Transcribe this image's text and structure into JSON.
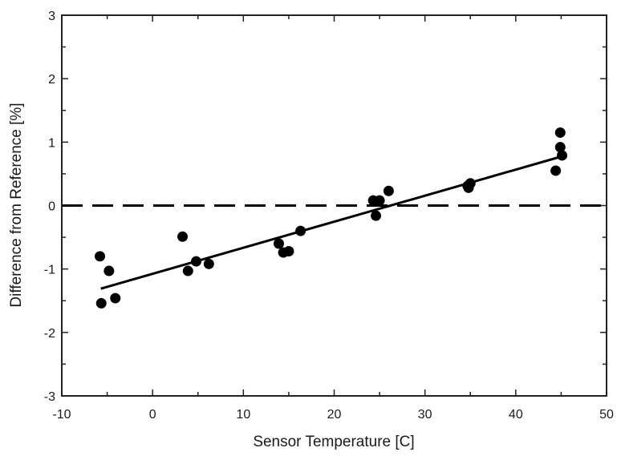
{
  "chart_data": {
    "type": "scatter",
    "title": "",
    "xlabel": "Sensor Temperature [C]",
    "ylabel": "Difference from Reference [%]",
    "xlim": [
      -10,
      50
    ],
    "ylim": [
      -3,
      3
    ],
    "xticks": [
      "-10",
      "0",
      "10",
      "20",
      "30",
      "40",
      "50"
    ],
    "yticks": [
      "-3",
      "-2",
      "-1",
      "0",
      "1",
      "2",
      "3"
    ],
    "grid": false,
    "legend": "none",
    "marker_color": "#000000",
    "points": [
      {
        "x": -5.8,
        "y": -0.8
      },
      {
        "x": -4.8,
        "y": -1.03
      },
      {
        "x": -5.65,
        "y": -1.54
      },
      {
        "x": -4.1,
        "y": -1.46
      },
      {
        "x": 3.3,
        "y": -0.49
      },
      {
        "x": 3.9,
        "y": -1.03
      },
      {
        "x": 4.8,
        "y": -0.88
      },
      {
        "x": 6.2,
        "y": -0.92
      },
      {
        "x": 13.9,
        "y": -0.6
      },
      {
        "x": 14.4,
        "y": -0.74
      },
      {
        "x": 15.0,
        "y": -0.72
      },
      {
        "x": 16.3,
        "y": -0.4
      },
      {
        "x": 24.3,
        "y": 0.08
      },
      {
        "x": 24.6,
        "y": -0.16
      },
      {
        "x": 25.0,
        "y": 0.08
      },
      {
        "x": 26.0,
        "y": 0.23
      },
      {
        "x": 34.7,
        "y": 0.31
      },
      {
        "x": 35.0,
        "y": 0.35
      },
      {
        "x": 34.8,
        "y": 0.28
      },
      {
        "x": 44.4,
        "y": 0.55
      },
      {
        "x": 44.9,
        "y": 1.15
      },
      {
        "x": 44.9,
        "y": 0.92
      },
      {
        "x": 45.1,
        "y": 0.79
      }
    ],
    "fit_line": {
      "x": [
        -5.7,
        45.2
      ],
      "y": [
        -1.31,
        0.78
      ]
    },
    "reference_line": {
      "y": 0,
      "style": "dashed"
    }
  }
}
